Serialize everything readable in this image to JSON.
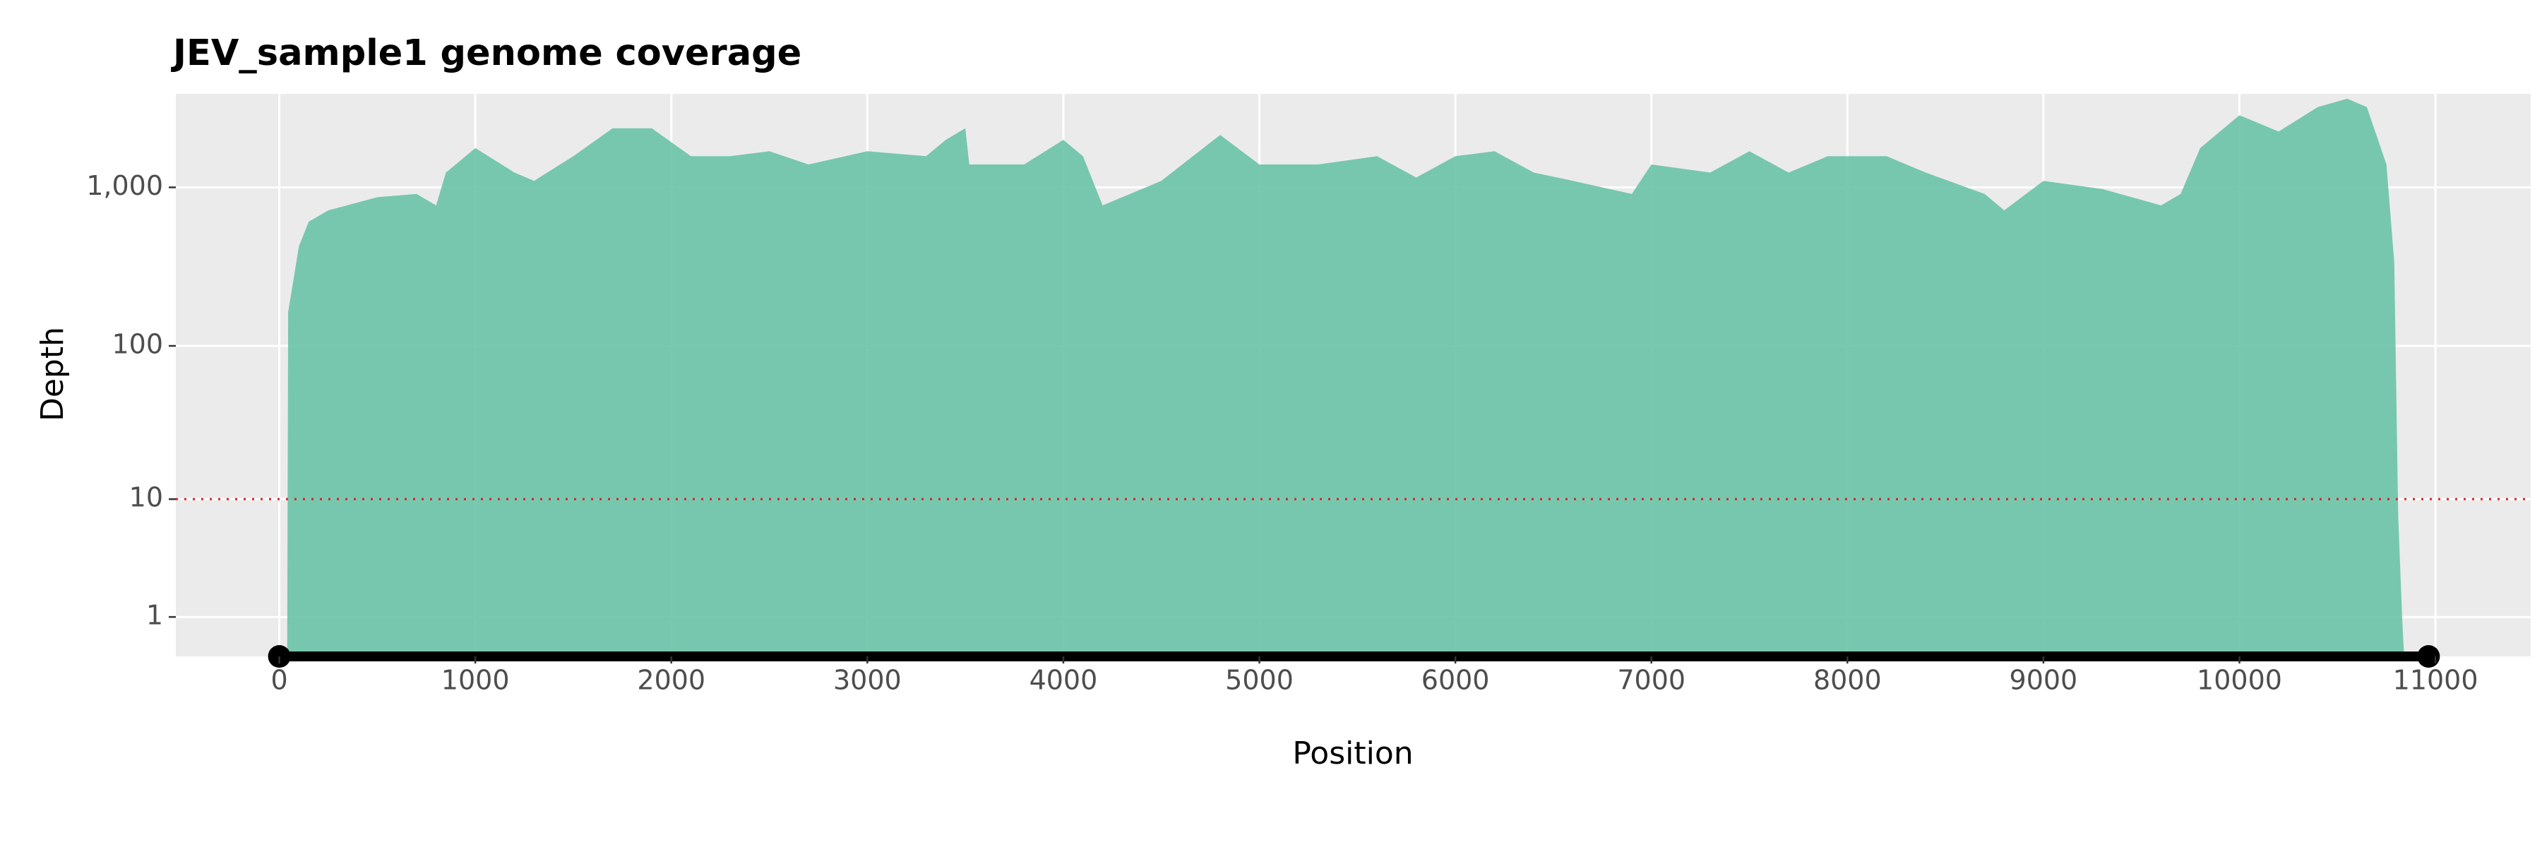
{
  "chart_data": {
    "type": "area",
    "title": "JEV_sample1 genome coverage",
    "x_label": "Position",
    "y_label": "Depth",
    "color": "#66c2a5",
    "y_scale": "pseudo_log",
    "grid": true,
    "x": [
      40,
      45,
      100,
      150,
      250,
      500,
      700,
      800,
      850,
      1000,
      1200,
      1300,
      1500,
      1700,
      1900,
      2100,
      2300,
      2500,
      2700,
      3000,
      3300,
      3400,
      3500,
      3520,
      3800,
      4000,
      4100,
      4200,
      4500,
      4800,
      5000,
      5300,
      5600,
      5800,
      6000,
      6200,
      6400,
      6600,
      6900,
      7000,
      7300,
      7500,
      7700,
      7900,
      8200,
      8400,
      8700,
      8800,
      9000,
      9300,
      9600,
      9700,
      9800,
      10000,
      10200,
      10400,
      10550,
      10650,
      10750,
      10790,
      10810,
      10830,
      10840
    ],
    "values": [
      0,
      164,
      425,
      608,
      717,
      867,
      909,
      770,
      1239,
      1767,
      1239,
      1099,
      1570,
      2350,
      2350,
      1570,
      1570,
      1686,
      1393,
      1686,
      1570,
      1991,
      2350,
      1393,
      1393,
      1991,
      1570,
      770,
      1099,
      2138,
      1393,
      1393,
      1570,
      1153,
      1570,
      1686,
      1239,
      1099,
      909,
      1393,
      1239,
      1686,
      1239,
      1570,
      1570,
      1239,
      909,
      717,
      1099,
      976,
      770,
      909,
      1767,
      2842,
      2243,
      3199,
      3606,
      3199,
      1393,
      335,
      7.7,
      1,
      0
    ],
    "xlim": [
      -528,
      11486
    ],
    "ylim": [
      0.13,
      3870
    ],
    "xticks": [
      0,
      1000,
      2000,
      3000,
      4000,
      5000,
      6000,
      7000,
      8000,
      9000,
      10000,
      11000
    ],
    "yticks": [
      1,
      10,
      100,
      {
        "value": 1000,
        "label": "1,000"
      }
    ],
    "threshold": {
      "value": 10,
      "color": "#e31a1c"
    },
    "genome_span": {
      "x": [
        0,
        10965
      ],
      "color": "#000000"
    }
  }
}
